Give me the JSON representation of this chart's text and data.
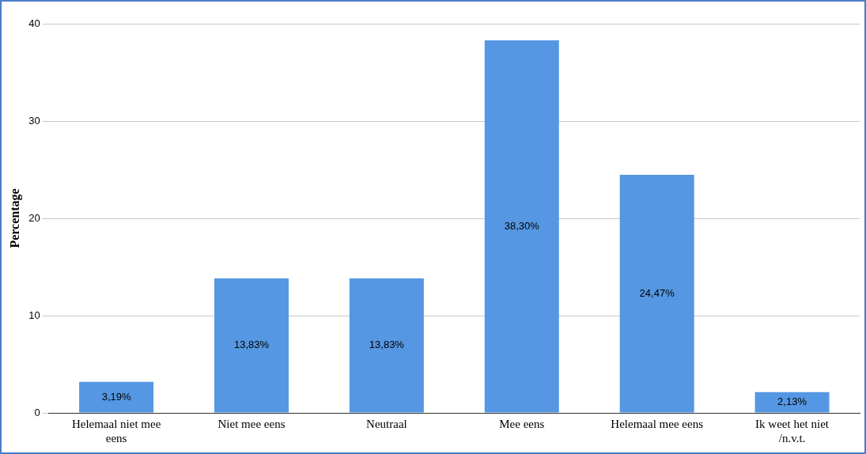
{
  "chart_data": {
    "type": "bar",
    "ylabel": "Percentage",
    "categories": [
      "Helemaal niet mee eens",
      "Niet mee eens",
      "Neutraal",
      "Mee eens",
      "Helemaal mee eens",
      "Ik weet het niet /n.v.t."
    ],
    "values": [
      3.19,
      13.83,
      13.83,
      38.3,
      24.47,
      2.13
    ],
    "value_labels": [
      "3,19%",
      "13,83%",
      "13,83%",
      "38,30%",
      "24,47%",
      "2,13%"
    ],
    "color": "#5597e2",
    "ylim": [
      0,
      40
    ],
    "yticks": [
      0,
      10,
      20,
      30,
      40
    ],
    "grid": "y",
    "legend": false
  }
}
